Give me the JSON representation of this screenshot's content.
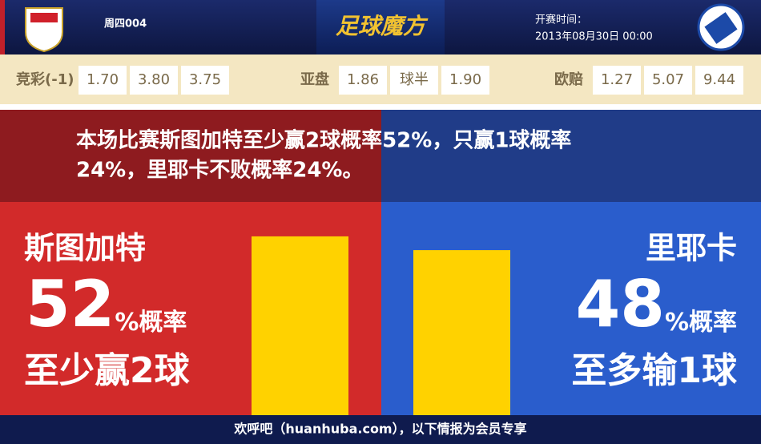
{
  "header": {
    "home_code": "周四004",
    "brand": "足球魔方",
    "time_label": "开赛时间：",
    "time": "2013年08月30日 00:00"
  },
  "odds": [
    {
      "label": "竞彩(-1)",
      "values": [
        "1.70",
        "3.80",
        "3.75"
      ]
    },
    {
      "label": "亚盘",
      "values": [
        "1.86",
        "球半",
        "1.90"
      ]
    },
    {
      "label": "欧赔",
      "values": [
        "1.27",
        "5.07",
        "9.44"
      ]
    }
  ],
  "summary": [
    "本场比赛斯图加特至少赢2球概率52%，只赢1球概率",
    "24%，里耶卡不败概率24%。"
  ],
  "home": {
    "team": "斯图加特",
    "percent": 52,
    "unit": "%概率",
    "outcome": "至少赢2球"
  },
  "away": {
    "team": "里耶卡",
    "percent": 48,
    "unit": "%概率",
    "outcome": "至多输1球"
  },
  "footer": "欢呼吧（huanhuba.com），以下情报为会员专享"
}
